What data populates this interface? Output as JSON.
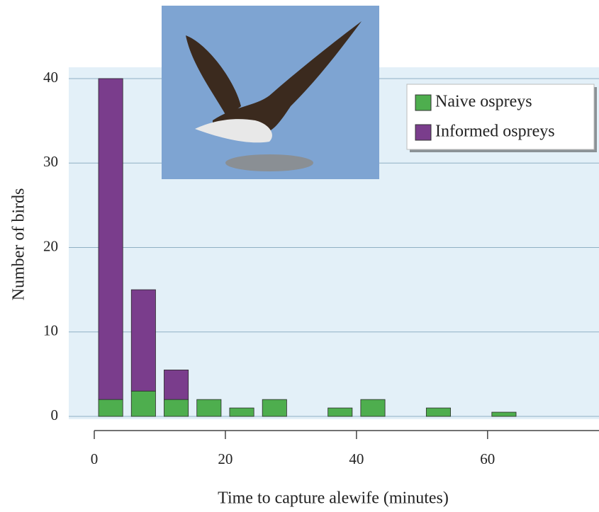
{
  "chart_data": {
    "type": "bar",
    "stacked": true,
    "x_label": "Time to capture alewife (minutes)",
    "y_label": "Number of birds",
    "x": [
      2.5,
      7.5,
      12.5,
      17.5,
      22.5,
      27.5,
      37.5,
      42.5,
      52.5,
      62.5
    ],
    "series": [
      {
        "name": "Naive ospreys",
        "color": "#4eae4e",
        "values": [
          2,
          3,
          2,
          2,
          1,
          2,
          1,
          2,
          1,
          0.5
        ]
      },
      {
        "name": "Informed ospreys",
        "color": "#7a3d8c",
        "values": [
          38,
          12,
          3.5,
          0,
          0,
          0,
          0,
          0,
          0,
          0
        ]
      }
    ],
    "xlim": [
      0,
      77
    ],
    "xticks": [
      0,
      20,
      40,
      60
    ],
    "ylim": [
      0,
      40.5
    ],
    "yticks": [
      0,
      10,
      20,
      30,
      40
    ],
    "grid": true,
    "legend": "upper right"
  }
}
